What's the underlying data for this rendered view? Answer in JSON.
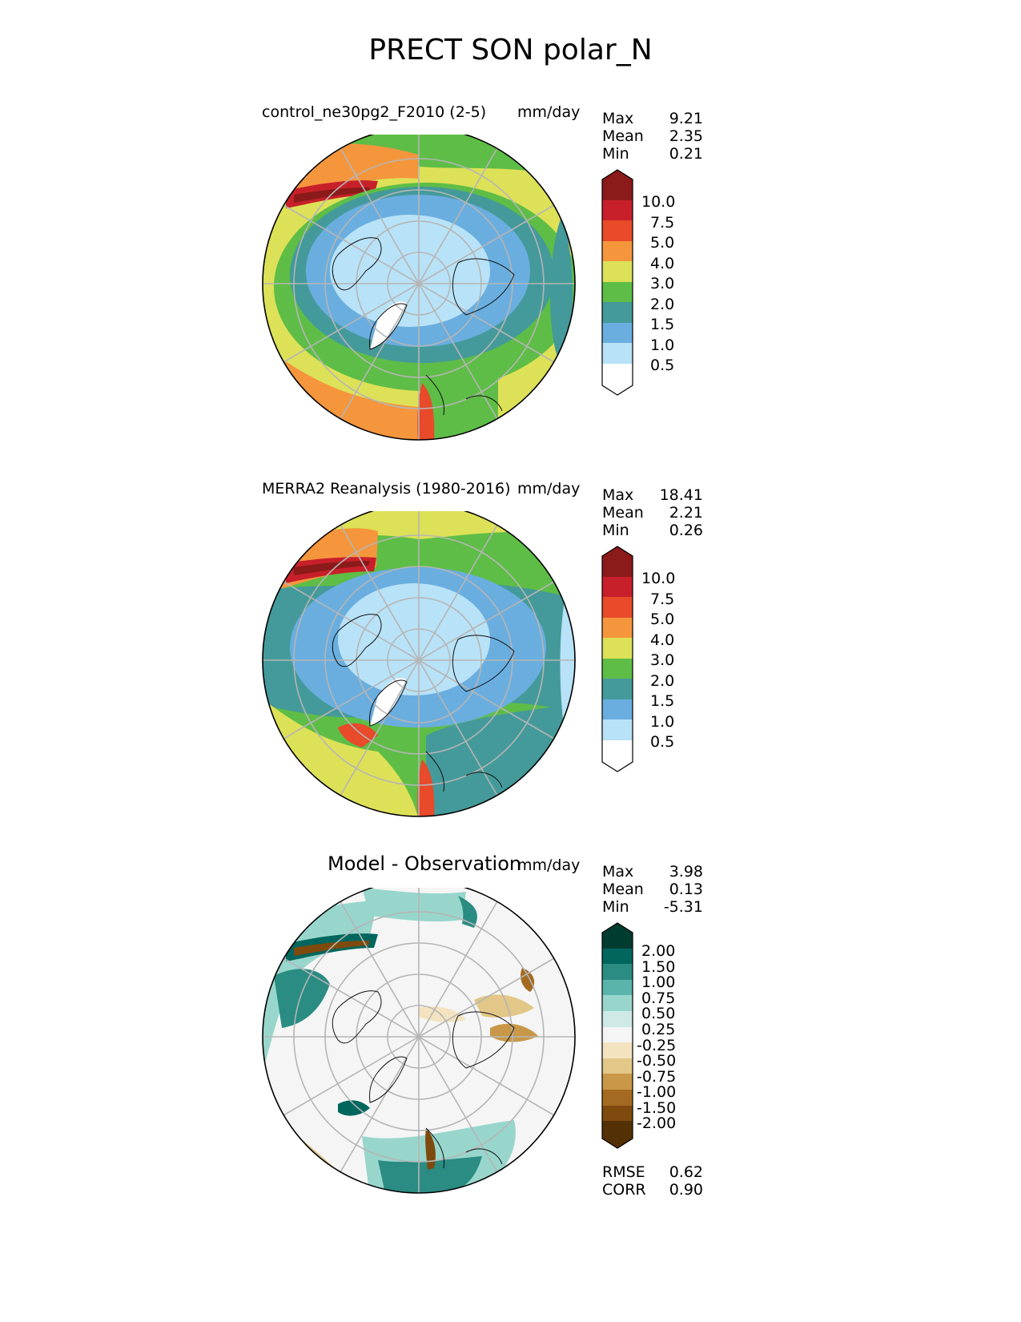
{
  "title": "PRECT SON polar_N",
  "panels": [
    {
      "title": "control_ne30pg2_F2010 (2-5)",
      "units": "mm/day",
      "stats": [
        {
          "label": "Max",
          "value": "9.21"
        },
        {
          "label": "Mean",
          "value": "2.35"
        },
        {
          "label": "Min",
          "value": "0.21"
        }
      ]
    },
    {
      "title": "MERRA2 Reanalysis (1980-2016)",
      "units": "mm/day",
      "stats": [
        {
          "label": "Max",
          "value": "18.41"
        },
        {
          "label": "Mean",
          "value": "2.21"
        },
        {
          "label": "Min",
          "value": "0.26"
        }
      ]
    },
    {
      "title": "Model - Observation",
      "units": "mm/day",
      "stats": [
        {
          "label": "Max",
          "value": "3.98"
        },
        {
          "label": "Mean",
          "value": "0.13"
        },
        {
          "label": "Min",
          "value": "-5.31"
        }
      ],
      "metrics": [
        {
          "label": "RMSE",
          "value": "0.62"
        },
        {
          "label": "CORR",
          "value": "0.90"
        }
      ]
    }
  ],
  "colorbar_precip": {
    "labels": [
      "10.0",
      "7.5",
      "5.0",
      "4.0",
      "3.0",
      "2.0",
      "1.5",
      "1.0",
      "0.5"
    ],
    "colors": [
      "#8b1a1a",
      "#c8202a",
      "#e84a2a",
      "#f5963c",
      "#dde157",
      "#5ebd46",
      "#449a9a",
      "#6aaee0",
      "#b8e2f7",
      "#ffffff"
    ]
  },
  "colorbar_diff": {
    "labels": [
      "2.00",
      "1.50",
      "1.00",
      "0.75",
      "0.50",
      "0.25",
      "-0.25",
      "-0.50",
      "-0.75",
      "-1.00",
      "-1.50",
      "-2.00"
    ],
    "colors": [
      "#013c30",
      "#01665e",
      "#2a8c82",
      "#5ab4ac",
      "#98d6cc",
      "#cfeae6",
      "#f5f5f5",
      "#f3e3c0",
      "#e2c788",
      "#c89848",
      "#a56a22",
      "#7f4a0e",
      "#543005"
    ]
  }
}
